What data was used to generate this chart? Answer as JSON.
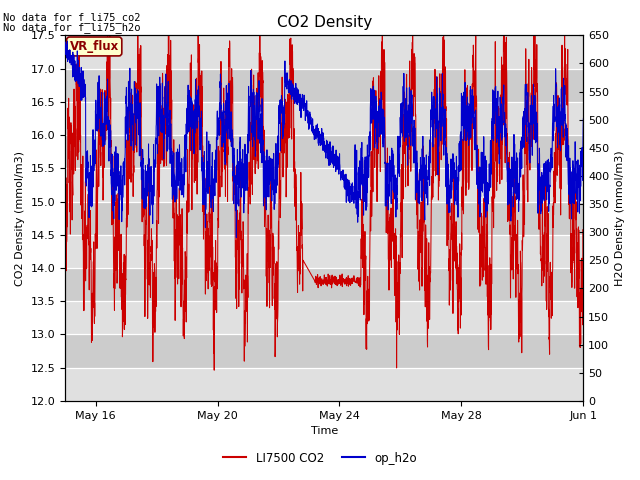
{
  "title": "CO2 Density",
  "xlabel": "Time",
  "ylabel_left": "CO2 Density (mmol/m3)",
  "ylabel_right": "H2O Density (mmol/m3)",
  "ylim_left": [
    12.0,
    17.5
  ],
  "ylim_right": [
    0,
    650
  ],
  "yticks_left": [
    12.0,
    12.5,
    13.0,
    13.5,
    14.0,
    14.5,
    15.0,
    15.5,
    16.0,
    16.5,
    17.0,
    17.5
  ],
  "yticks_right": [
    0,
    50,
    100,
    150,
    200,
    250,
    300,
    350,
    400,
    450,
    500,
    550,
    600,
    650
  ],
  "annotation_text1": "No data for f_li75_co2",
  "annotation_text2": "No data for f_li75_h2o",
  "legend_labels": [
    "LI7500 CO2",
    "op_h2o"
  ],
  "badge_text": "VR_flux",
  "badge_facecolor": "#FFFFCC",
  "badge_edgecolor": "#8B0000",
  "line1_color": "#CC0000",
  "line2_color": "#0000CC",
  "band_colors": [
    "#e8e8e8",
    "#d0d0d0"
  ],
  "xticklabels": [
    "May 16",
    "May 20",
    "May 24",
    "May 28",
    "Jun 1"
  ],
  "xtick_days": [
    1,
    5,
    9,
    13,
    17
  ],
  "xlim": [
    0,
    17
  ],
  "seed": 123,
  "n_points": 3000,
  "total_days": 17
}
